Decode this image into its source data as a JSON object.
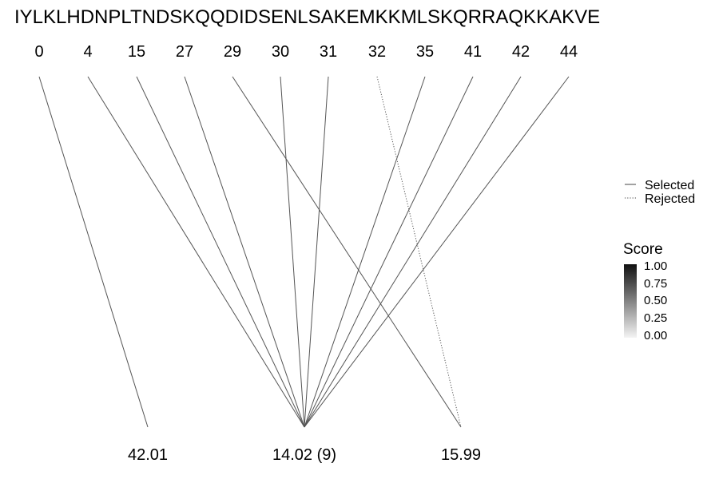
{
  "sequence": "IYLKLHDNPLTNDSKQQDIDSENLSAKEMKKMLSKQRRAQKKAKVE",
  "positions": [
    "0",
    "4",
    "15",
    "27",
    "29",
    "30",
    "31",
    "32",
    "35",
    "41",
    "42",
    "44"
  ],
  "masses": [
    "42.01",
    "14.02 (9)",
    "15.99"
  ],
  "connections": [
    {
      "from": 0,
      "to": 0,
      "status": "selected"
    },
    {
      "from": 1,
      "to": 1,
      "status": "selected"
    },
    {
      "from": 2,
      "to": 1,
      "status": "selected"
    },
    {
      "from": 3,
      "to": 1,
      "status": "selected"
    },
    {
      "from": 4,
      "to": 2,
      "status": "selected"
    },
    {
      "from": 5,
      "to": 1,
      "status": "selected"
    },
    {
      "from": 6,
      "to": 1,
      "status": "selected"
    },
    {
      "from": 7,
      "to": 2,
      "status": "rejected"
    },
    {
      "from": 8,
      "to": 1,
      "status": "selected"
    },
    {
      "from": 9,
      "to": 1,
      "status": "selected"
    },
    {
      "from": 10,
      "to": 1,
      "status": "selected"
    },
    {
      "from": 11,
      "to": 1,
      "status": "selected"
    }
  ],
  "legend": {
    "selected": "Selected",
    "rejected": "Rejected",
    "score_title": "Score",
    "score_ticks": [
      "1.00",
      "0.75",
      "0.50",
      "0.25",
      "0.00"
    ]
  }
}
